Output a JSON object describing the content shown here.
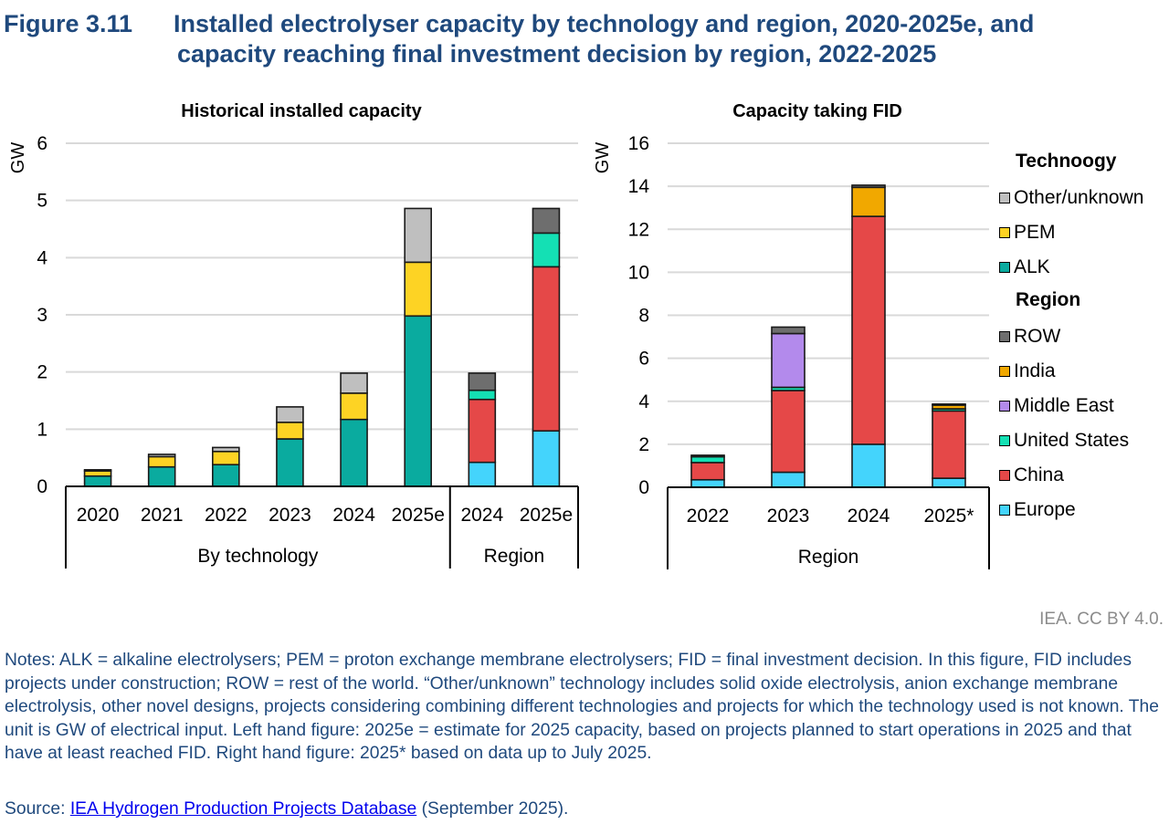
{
  "figure": {
    "number": "Figure 3.11",
    "title_line1": "Installed electrolyser capacity by technology and region, 2020-2025e, and",
    "title_line2": "capacity reaching final investment decision by region, 2022-2025"
  },
  "colors": {
    "Other/unknown": "#bfbfbf",
    "PEM": "#fdd324",
    "ALK": "#0aab9f",
    "ROW": "#6e6e6e",
    "India": "#f1a800",
    "Middle East": "#b38aec",
    "United States": "#14e0b4",
    "China": "#e54848",
    "Europe": "#44d4fc"
  },
  "chart_data": [
    {
      "type": "bar",
      "stacked": true,
      "title": "Historical installed capacity",
      "ylabel": "GW",
      "xlabel": "",
      "ylim": [
        0,
        6
      ],
      "yticks": [
        "0",
        "1",
        "2",
        "3",
        "4",
        "5",
        "6"
      ],
      "grid": true,
      "categories": [
        "2020",
        "2021",
        "2022",
        "2023",
        "2024",
        "2025e",
        "2024",
        "2025e"
      ],
      "groups": [
        {
          "label": "By technology",
          "categories": [
            "2020",
            "2021",
            "2022",
            "2023",
            "2024",
            "2025e"
          ]
        },
        {
          "label": "Region",
          "categories": [
            "2024",
            "2025e"
          ]
        }
      ],
      "series": [
        {
          "name": "ALK",
          "values": [
            0.18,
            0.34,
            0.38,
            0.83,
            1.17,
            2.98,
            0,
            0
          ]
        },
        {
          "name": "PEM",
          "values": [
            0.09,
            0.18,
            0.23,
            0.29,
            0.46,
            0.94,
            0,
            0
          ]
        },
        {
          "name": "Other/unknown",
          "values": [
            0.02,
            0.04,
            0.07,
            0.27,
            0.35,
            0.94,
            0,
            0
          ]
        },
        {
          "name": "Europe",
          "values": [
            0,
            0,
            0,
            0,
            0,
            0,
            0.42,
            0.97
          ]
        },
        {
          "name": "China",
          "values": [
            0,
            0,
            0,
            0,
            0,
            0,
            1.1,
            2.87
          ]
        },
        {
          "name": "United States",
          "values": [
            0,
            0,
            0,
            0,
            0,
            0,
            0.16,
            0.59
          ]
        },
        {
          "name": "ROW",
          "values": [
            0,
            0,
            0,
            0,
            0,
            0,
            0.3,
            0.43
          ]
        }
      ]
    },
    {
      "type": "bar",
      "stacked": true,
      "title": "Capacity taking FID",
      "ylabel": "GW",
      "xlabel": "",
      "ylim": [
        0,
        16
      ],
      "yticks": [
        "0",
        "2",
        "4",
        "6",
        "8",
        "10",
        "12",
        "14",
        "16"
      ],
      "grid": true,
      "categories": [
        "2022",
        "2023",
        "2024",
        "2025*"
      ],
      "groups": [
        {
          "label": "Region",
          "categories": [
            "2022",
            "2023",
            "2024",
            "2025*"
          ]
        }
      ],
      "series": [
        {
          "name": "Europe",
          "values": [
            0.35,
            0.7,
            2.0,
            0.42
          ]
        },
        {
          "name": "China",
          "values": [
            0.8,
            3.8,
            10.6,
            3.13
          ]
        },
        {
          "name": "United States",
          "values": [
            0.27,
            0.15,
            0,
            0.1
          ]
        },
        {
          "name": "Middle East",
          "values": [
            0,
            2.5,
            0,
            0
          ]
        },
        {
          "name": "India",
          "values": [
            0,
            0,
            1.35,
            0.17
          ]
        },
        {
          "name": "ROW",
          "values": [
            0.07,
            0.3,
            0.1,
            0.05
          ]
        }
      ],
      "legend_position": "right"
    }
  ],
  "legend": {
    "technology_heading": "Technoogy",
    "technology_items": [
      "Other/unknown",
      "PEM",
      "ALK"
    ],
    "region_heading": "Region",
    "region_items": [
      "ROW",
      "India",
      "Middle East",
      "United States",
      "China",
      "Europe"
    ]
  },
  "credit": "IEA. CC BY 4.0.",
  "notes": "Notes: ALK = alkaline electrolysers; PEM = proton exchange membrane electrolysers; FID = final investment decision. In this figure, FID includes projects under construction; ROW = rest of the world. “Other/unknown” technology includes solid oxide electrolysis, anion exchange membrane electrolysis, other novel designs, projects considering combining different technologies and projects for which the technology used is not known. The unit is GW of electrical input. Left hand figure: 2025e = estimate for 2025 capacity, based on projects planned to start operations in 2025 and that have at least reached FID. Right hand figure: 2025* based on data up to July 2025.",
  "source": {
    "prefix": "Source: ",
    "link_text": "IEA Hydrogen Production Projects Database",
    "suffix": " (September 2025)."
  }
}
